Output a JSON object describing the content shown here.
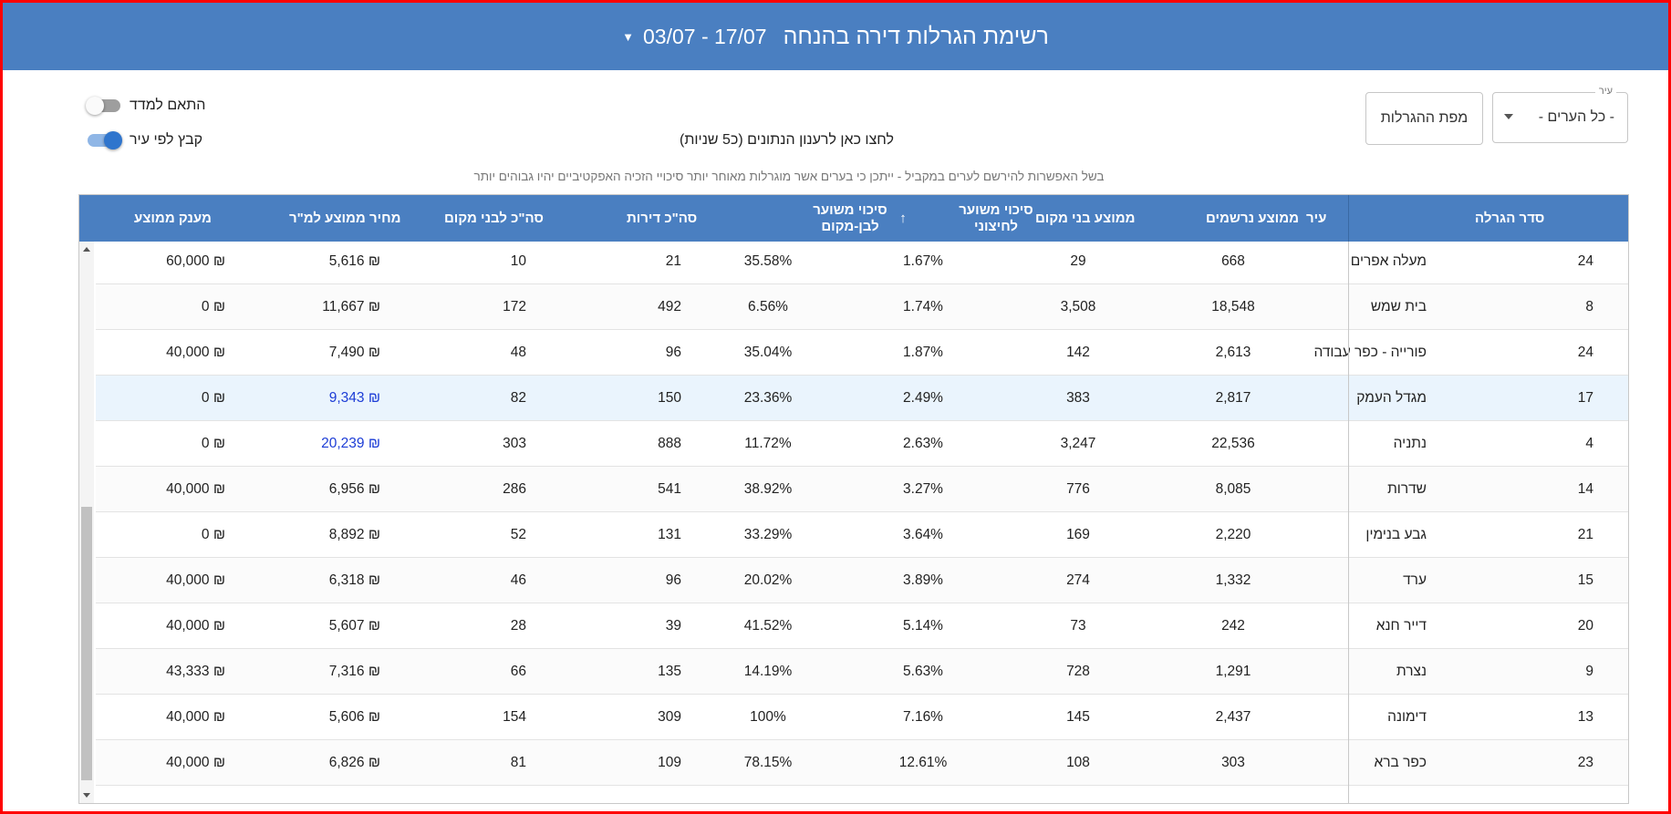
{
  "header": {
    "title": "רשימת הגרלות דירה בהנחה",
    "date_range": "03/07 - 17/07",
    "caret": "▼"
  },
  "filters": {
    "city_label": "עיר",
    "city_value": "- כל הערים -",
    "map_button": "מפת ההגרלות",
    "toggle_fit_index": {
      "label": "התאם למדד",
      "on": false
    },
    "toggle_group_by_city": {
      "label": "קבץ לפי עיר",
      "on": true
    },
    "refresh_text": "לחצו כאן לרענון הנתונים (כ5 שניות)",
    "note": "בשל האפשרות להירשם לערים במקביל - ייתכן כי בערים אשר מוגרלות מאוחר יותר סיכויי הזכיה האפקטיביים יהיו גבוהים יותר"
  },
  "table": {
    "headers": {
      "lottery_order": "סדר הגרלה",
      "city": "עיר",
      "avg_registered": "ממוצע נרשמים",
      "avg_locals": "ממוצע בני מקום",
      "chance_external_l1": "סיכוי משוער",
      "chance_external_l2": "לחיצוני",
      "sort_arrow": "↑",
      "chance_local_l1": "סיכוי משוער",
      "chance_local_l2": "לבן-מקום",
      "total_apartments": "סה\"כ דירות",
      "total_local": "סה\"כ לבני מקום",
      "avg_price_sqm": "מחיר ממוצע למ\"ר",
      "avg_grant": "מענק ממוצע"
    },
    "rows": [
      {
        "order": "24",
        "city": "מעלה אפרים",
        "registered": "668",
        "locals": "29",
        "ext": "1.67%",
        "loc": "35.58%",
        "apts": "21",
        "local_total": "10",
        "price": "₪ 5,616",
        "grant": "₪ 60,000"
      },
      {
        "order": "8",
        "city": "בית שמש",
        "registered": "18,548",
        "locals": "3,508",
        "ext": "1.74%",
        "loc": "6.56%",
        "apts": "492",
        "local_total": "172",
        "price": "₪ 11,667",
        "grant": "₪ 0"
      },
      {
        "order": "24",
        "city": "פורייה - כפר עבודה",
        "registered": "2,613",
        "locals": "142",
        "ext": "1.87%",
        "loc": "35.04%",
        "apts": "96",
        "local_total": "48",
        "price": "₪ 7,490",
        "grant": "₪ 40,000"
      },
      {
        "order": "17",
        "city": "מגדל העמק",
        "registered": "2,817",
        "locals": "383",
        "ext": "2.49%",
        "loc": "23.36%",
        "apts": "150",
        "local_total": "82",
        "price": "₪ 9,343",
        "grant": "₪ 0"
      },
      {
        "order": "4",
        "city": "נתניה",
        "registered": "22,536",
        "locals": "3,247",
        "ext": "2.63%",
        "loc": "11.72%",
        "apts": "888",
        "local_total": "303",
        "price": "₪ 20,239",
        "grant": "₪ 0"
      },
      {
        "order": "14",
        "city": "שדרות",
        "registered": "8,085",
        "locals": "776",
        "ext": "3.27%",
        "loc": "38.92%",
        "apts": "541",
        "local_total": "286",
        "price": "₪ 6,956",
        "grant": "₪ 40,000"
      },
      {
        "order": "21",
        "city": "גבע בנימין",
        "registered": "2,220",
        "locals": "169",
        "ext": "3.64%",
        "loc": "33.29%",
        "apts": "131",
        "local_total": "52",
        "price": "₪ 8,892",
        "grant": "₪ 0"
      },
      {
        "order": "15",
        "city": "ערד",
        "registered": "1,332",
        "locals": "274",
        "ext": "3.89%",
        "loc": "20.02%",
        "apts": "96",
        "local_total": "46",
        "price": "₪ 6,318",
        "grant": "₪ 40,000"
      },
      {
        "order": "20",
        "city": "דייר חנא",
        "registered": "242",
        "locals": "73",
        "ext": "5.14%",
        "loc": "41.52%",
        "apts": "39",
        "local_total": "28",
        "price": "₪ 5,607",
        "grant": "₪ 40,000"
      },
      {
        "order": "9",
        "city": "נצרת",
        "registered": "1,291",
        "locals": "728",
        "ext": "5.63%",
        "loc": "14.19%",
        "apts": "135",
        "local_total": "66",
        "price": "₪ 7,316",
        "grant": "₪ 43,333"
      },
      {
        "order": "13",
        "city": "דימונה",
        "registered": "2,437",
        "locals": "145",
        "ext": "7.16%",
        "loc": "100%",
        "apts": "309",
        "local_total": "154",
        "price": "₪ 5,606",
        "grant": "₪ 40,000"
      },
      {
        "order": "23",
        "city": "כפר ברא",
        "registered": "303",
        "locals": "108",
        "ext": "12.61%",
        "loc": "78.15%",
        "apts": "109",
        "local_total": "81",
        "price": "₪ 6,826",
        "grant": "₪ 40,000"
      }
    ]
  },
  "colors": {
    "primary": "#4a7fc1",
    "link": "#1d3dd6",
    "selected_row": "#eaf4fd",
    "frame": "#ff0000"
  }
}
